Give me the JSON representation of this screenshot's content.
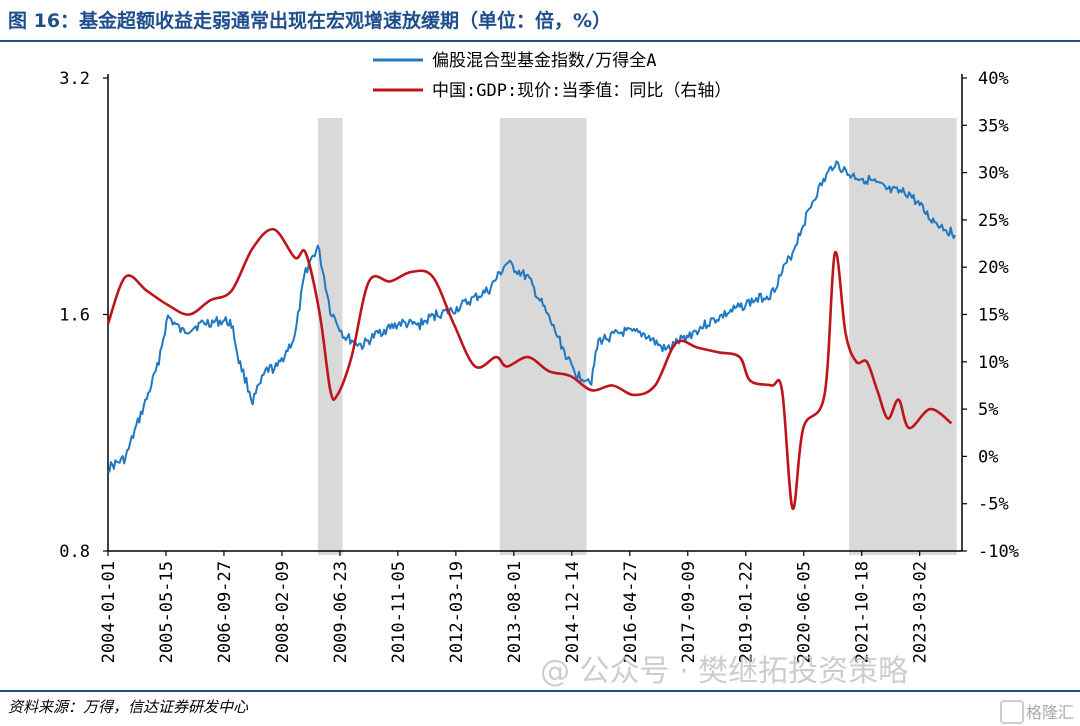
{
  "header": {
    "title": "图 16：基金超额收益走弱通常出现在宏观增速放缓期（单位：倍，%）"
  },
  "footer": {
    "source": "资料来源：万得，信达证券研发中心",
    "watermark": "@ 公众号 · 樊继拓投资策略",
    "watermark_badge": "格隆汇"
  },
  "chart_data": {
    "type": "line",
    "x_tick_labels": [
      "2004-01-01",
      "2005-05-15",
      "2006-09-27",
      "2008-02-09",
      "2009-06-23",
      "2010-11-05",
      "2012-03-19",
      "2013-08-01",
      "2014-12-14",
      "2016-04-27",
      "2017-09-09",
      "2019-01-22",
      "2020-06-05",
      "2021-10-18",
      "2023-03-02"
    ],
    "x_range": [
      "2004-01-01",
      "2024-03-01"
    ],
    "y_left": {
      "ticks": [
        "0.8",
        "1.6",
        "3.2"
      ],
      "range": [
        0.8,
        3.2
      ],
      "scale": "log"
    },
    "y_right": {
      "ticks": [
        "-10%",
        "-5%",
        "0%",
        "5%",
        "10%",
        "15%",
        "20%",
        "25%",
        "30%",
        "35%",
        "40%"
      ],
      "range": [
        -10,
        40
      ]
    },
    "shaded_periods": [
      [
        "2008-12-15",
        "2009-07-15"
      ],
      [
        "2013-04-01",
        "2015-04-20"
      ],
      [
        "2021-07-01",
        "2024-01-15"
      ]
    ],
    "series": [
      {
        "name": "偏股混合型基金指数/万得全A",
        "axis": "left",
        "color": "#1f78c1",
        "points": [
          [
            "2004-01-01",
            1.02
          ],
          [
            "2004-06-01",
            1.05
          ],
          [
            "2004-12-01",
            1.25
          ],
          [
            "2005-03-01",
            1.37
          ],
          [
            "2005-06-01",
            1.59
          ],
          [
            "2005-10-01",
            1.52
          ],
          [
            "2006-04-01",
            1.56
          ],
          [
            "2006-10-01",
            1.57
          ],
          [
            "2006-12-01",
            1.56
          ],
          [
            "2007-02-01",
            1.4
          ],
          [
            "2007-06-01",
            1.24
          ],
          [
            "2007-10-01",
            1.36
          ],
          [
            "2008-01-01",
            1.37
          ],
          [
            "2008-06-01",
            1.5
          ],
          [
            "2008-09-01",
            1.82
          ],
          [
            "2008-12-15",
            1.95
          ],
          [
            "2009-04-01",
            1.62
          ],
          [
            "2009-08-01",
            1.5
          ],
          [
            "2010-01-01",
            1.46
          ],
          [
            "2010-06-01",
            1.52
          ],
          [
            "2010-12-01",
            1.56
          ],
          [
            "2011-05-01",
            1.55
          ],
          [
            "2011-10-01",
            1.6
          ],
          [
            "2012-03-01",
            1.62
          ],
          [
            "2012-08-01",
            1.67
          ],
          [
            "2013-01-01",
            1.72
          ],
          [
            "2013-06-01",
            1.86
          ],
          [
            "2013-12-01",
            1.78
          ],
          [
            "2014-06-01",
            1.58
          ],
          [
            "2014-12-01",
            1.38
          ],
          [
            "2015-02-01",
            1.34
          ],
          [
            "2015-06-01",
            1.32
          ],
          [
            "2015-08-01",
            1.48
          ],
          [
            "2016-03-01",
            1.52
          ],
          [
            "2016-09-01",
            1.51
          ],
          [
            "2017-03-01",
            1.44
          ],
          [
            "2017-09-01",
            1.5
          ],
          [
            "2018-03-01",
            1.56
          ],
          [
            "2018-09-01",
            1.61
          ],
          [
            "2019-03-01",
            1.66
          ],
          [
            "2019-09-01",
            1.7
          ],
          [
            "2020-03-01",
            1.92
          ],
          [
            "2020-09-01",
            2.25
          ],
          [
            "2021-01-01",
            2.42
          ],
          [
            "2021-03-01",
            2.5
          ],
          [
            "2021-07-01",
            2.41
          ],
          [
            "2022-01-01",
            2.37
          ],
          [
            "2022-06-01",
            2.3
          ],
          [
            "2022-12-01",
            2.28
          ],
          [
            "2023-06-01",
            2.12
          ],
          [
            "2024-01-01",
            2.02
          ]
        ]
      },
      {
        "name": "中国:GDP:现价:当季值：同比（右轴）",
        "axis": "right",
        "color": "#c0141c",
        "points": [
          [
            "2004-01-01",
            14.0
          ],
          [
            "2004-06-01",
            19.0
          ],
          [
            "2004-12-01",
            17.5
          ],
          [
            "2005-06-01",
            16.0
          ],
          [
            "2005-12-01",
            15.0
          ],
          [
            "2006-06-01",
            16.5
          ],
          [
            "2006-12-01",
            17.5
          ],
          [
            "2007-06-01",
            22.0
          ],
          [
            "2007-12-01",
            24.0
          ],
          [
            "2008-06-01",
            21.0
          ],
          [
            "2008-09-01",
            21.5
          ],
          [
            "2009-01-01",
            15.0
          ],
          [
            "2009-04-01",
            7.0
          ],
          [
            "2009-06-01",
            6.5
          ],
          [
            "2009-10-01",
            10.5
          ],
          [
            "2010-03-01",
            18.5
          ],
          [
            "2010-09-01",
            18.5
          ],
          [
            "2011-03-01",
            19.5
          ],
          [
            "2011-09-01",
            19.0
          ],
          [
            "2012-03-01",
            14.0
          ],
          [
            "2012-09-01",
            9.5
          ],
          [
            "2013-03-01",
            10.5
          ],
          [
            "2013-06-01",
            9.5
          ],
          [
            "2013-12-01",
            10.5
          ],
          [
            "2014-06-01",
            9.0
          ],
          [
            "2014-12-01",
            8.5
          ],
          [
            "2015-06-01",
            7.0
          ],
          [
            "2015-12-01",
            7.5
          ],
          [
            "2016-06-01",
            6.5
          ],
          [
            "2016-12-01",
            7.5
          ],
          [
            "2017-06-01",
            12.0
          ],
          [
            "2017-12-01",
            11.5
          ],
          [
            "2018-06-01",
            11.0
          ],
          [
            "2018-12-01",
            10.5
          ],
          [
            "2019-03-01",
            8.0
          ],
          [
            "2019-09-01",
            7.5
          ],
          [
            "2019-12-01",
            7.0
          ],
          [
            "2020-03-01",
            -5.5
          ],
          [
            "2020-06-01",
            3.0
          ],
          [
            "2020-12-01",
            6.5
          ],
          [
            "2021-03-01",
            21.5
          ],
          [
            "2021-06-01",
            13.0
          ],
          [
            "2021-09-01",
            10.0
          ],
          [
            "2021-12-01",
            10.0
          ],
          [
            "2022-03-01",
            7.0
          ],
          [
            "2022-06-01",
            4.0
          ],
          [
            "2022-09-01",
            6.0
          ],
          [
            "2022-12-01",
            3.0
          ],
          [
            "2023-06-01",
            5.0
          ],
          [
            "2023-12-01",
            3.5
          ]
        ]
      }
    ]
  }
}
